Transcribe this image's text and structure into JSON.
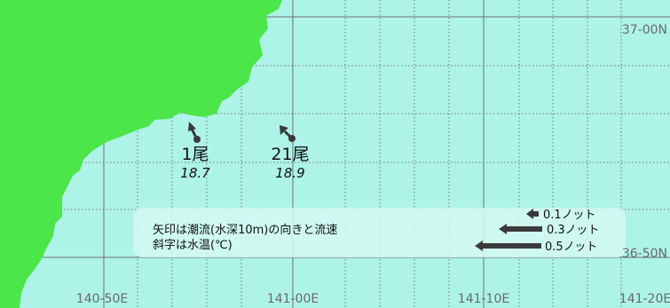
{
  "colors": {
    "sea": "#adf3e7",
    "land": "#4ce54a",
    "grid_major": "#707070",
    "grid_minor": "#7a7a7a",
    "arrow": "#3a3a3a",
    "label": "#6a6a6a",
    "text": "#111111"
  },
  "lat_labels": [
    "37-00N",
    "36-50N"
  ],
  "lon_labels": [
    "140-50E",
    "141-00E",
    "141-10E",
    "141-20E"
  ],
  "stations": [
    {
      "count": "1尾",
      "temp": "18.7"
    },
    {
      "count": "21尾",
      "temp": "18.9"
    }
  ],
  "legend": {
    "items": [
      {
        "label": "0.1ノット",
        "speed_knots": 0.1
      },
      {
        "label": "0.3ノット",
        "speed_knots": 0.3
      },
      {
        "label": "0.5ノット",
        "speed_knots": 0.5
      }
    ],
    "note_lines": [
      "矢印は潮流(水深10m)の向きと流速",
      "斜字は水温(℃)"
    ]
  }
}
